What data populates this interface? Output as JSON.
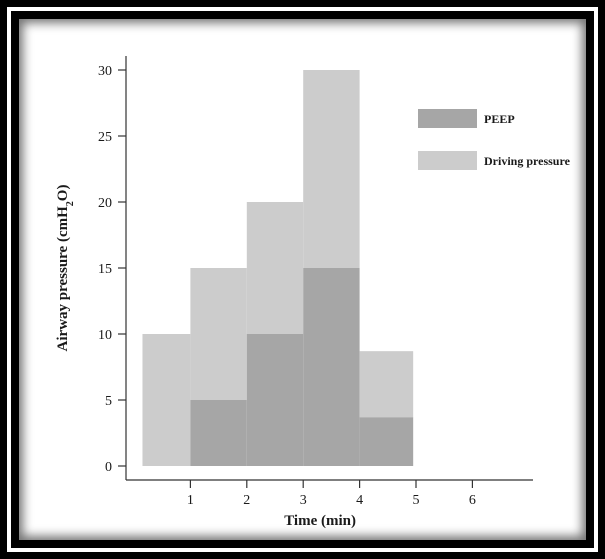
{
  "chart_data": {
    "type": "bar",
    "stacked": true,
    "xlabel": "Time (min)",
    "ylabel_main": "Airway pressure (cmH",
    "ylabel_sub": "2",
    "ylabel_tail": "O)",
    "xlim": [
      0,
      7
    ],
    "ylim": [
      0,
      30
    ],
    "xticks": [
      1,
      2,
      3,
      4,
      5,
      6
    ],
    "yticks": [
      0,
      5,
      10,
      15,
      20,
      25,
      30
    ],
    "legend_placement": "top-right",
    "colors": {
      "peep": "#a6a6a6",
      "driving": "#cccccc"
    },
    "bins": [
      {
        "x0": 0.15,
        "x1": 1.0,
        "peep": 0,
        "driving": 10
      },
      {
        "x0": 1.0,
        "x1": 2.0,
        "peep": 5,
        "driving": 10
      },
      {
        "x0": 2.0,
        "x1": 3.0,
        "peep": 10,
        "driving": 10
      },
      {
        "x0": 3.0,
        "x1": 4.0,
        "peep": 15,
        "driving": 15
      },
      {
        "x0": 4.0,
        "x1": 4.95,
        "peep": 3.7,
        "driving": 5
      }
    ],
    "series": [
      {
        "key": "peep",
        "name": "PEEP"
      },
      {
        "key": "driving",
        "name": "Driving pressure"
      }
    ]
  }
}
